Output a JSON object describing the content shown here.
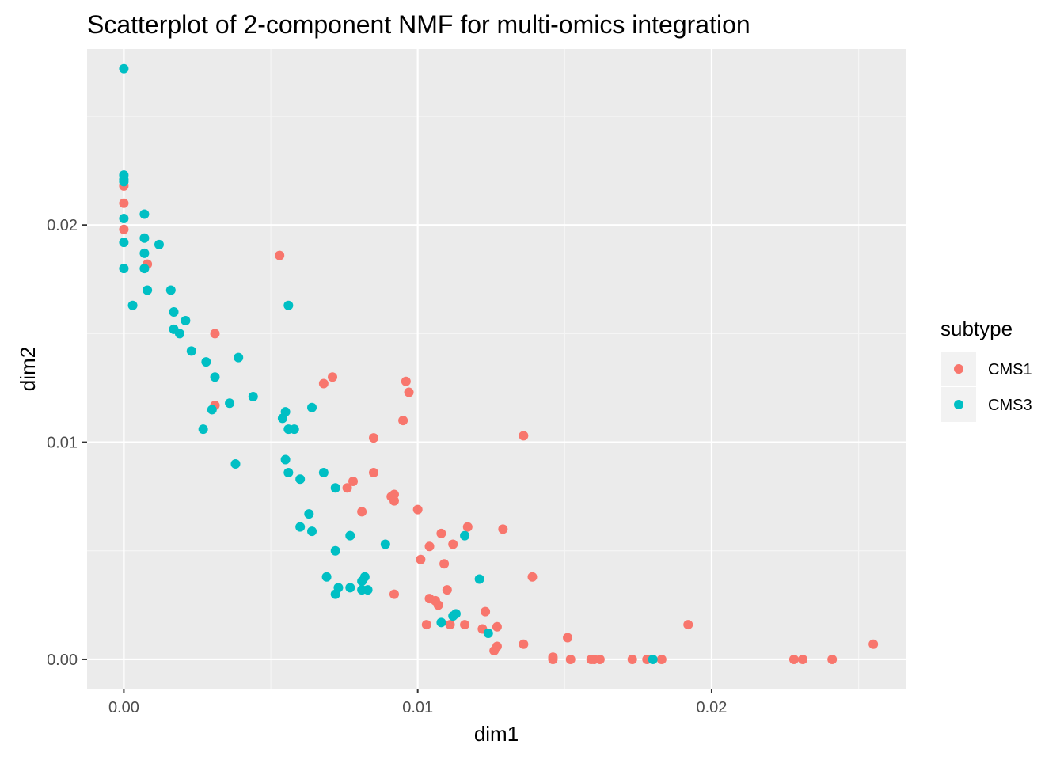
{
  "chart_data": {
    "type": "scatter",
    "title": "Scatterplot of 2-component NMF for multi-omics integration",
    "xlabel": "dim1",
    "ylabel": "dim2",
    "xlim": [
      -0.00125,
      0.0266
    ],
    "ylim": [
      -0.00135,
      0.0281
    ],
    "x_ticks": [
      0.0,
      0.01,
      0.02
    ],
    "x_tick_labels": [
      "0.00",
      "0.01",
      "0.02"
    ],
    "y_ticks": [
      0.0,
      0.01,
      0.02
    ],
    "y_tick_labels": [
      "0.00",
      "0.01",
      "0.02"
    ],
    "grid": true,
    "legend": {
      "title": "subtype",
      "position": "right"
    },
    "series": [
      {
        "name": "CMS1",
        "color": "#F8766D",
        "points": [
          [
            0.0,
            0.0218
          ],
          [
            0.0,
            0.021
          ],
          [
            0.0,
            0.0198
          ],
          [
            0.0008,
            0.0182
          ],
          [
            0.0053,
            0.0186
          ],
          [
            0.0031,
            0.015
          ],
          [
            0.0031,
            0.0117
          ],
          [
            0.0068,
            0.0127
          ],
          [
            0.0071,
            0.013
          ],
          [
            0.0096,
            0.0128
          ],
          [
            0.0097,
            0.0123
          ],
          [
            0.0095,
            0.011
          ],
          [
            0.0085,
            0.0102
          ],
          [
            0.0136,
            0.0103
          ],
          [
            0.0085,
            0.0086
          ],
          [
            0.0078,
            0.0082
          ],
          [
            0.0076,
            0.0079
          ],
          [
            0.0081,
            0.0068
          ],
          [
            0.0091,
            0.0075
          ],
          [
            0.0092,
            0.0076
          ],
          [
            0.0092,
            0.0073
          ],
          [
            0.01,
            0.0069
          ],
          [
            0.0117,
            0.0061
          ],
          [
            0.0129,
            0.006
          ],
          [
            0.0108,
            0.0058
          ],
          [
            0.0104,
            0.0052
          ],
          [
            0.0112,
            0.0053
          ],
          [
            0.0101,
            0.0046
          ],
          [
            0.0109,
            0.0044
          ],
          [
            0.0139,
            0.0038
          ],
          [
            0.011,
            0.0032
          ],
          [
            0.0092,
            0.003
          ],
          [
            0.0104,
            0.0028
          ],
          [
            0.0106,
            0.0027
          ],
          [
            0.0107,
            0.0025
          ],
          [
            0.0123,
            0.0022
          ],
          [
            0.0103,
            0.0016
          ],
          [
            0.0111,
            0.0016
          ],
          [
            0.0116,
            0.0016
          ],
          [
            0.0122,
            0.0014
          ],
          [
            0.0127,
            0.0015
          ],
          [
            0.0192,
            0.0016
          ],
          [
            0.0151,
            0.001
          ],
          [
            0.0255,
            0.0007
          ],
          [
            0.0136,
            0.0007
          ],
          [
            0.0127,
            0.0006
          ],
          [
            0.0126,
            0.0004
          ],
          [
            0.0146,
            0.0
          ],
          [
            0.0146,
            0.0001
          ],
          [
            0.0152,
            0.0
          ],
          [
            0.0159,
            0.0
          ],
          [
            0.016,
            0.0
          ],
          [
            0.0162,
            0.0
          ],
          [
            0.0173,
            0.0
          ],
          [
            0.0178,
            0.0
          ],
          [
            0.0183,
            0.0
          ],
          [
            0.0228,
            0.0
          ],
          [
            0.0231,
            0.0
          ],
          [
            0.0241,
            0.0
          ]
        ]
      },
      {
        "name": "CMS3",
        "color": "#00BFC4",
        "points": [
          [
            0.0,
            0.0272
          ],
          [
            0.0,
            0.0223
          ],
          [
            0.0,
            0.0221
          ],
          [
            0.0,
            0.022
          ],
          [
            0.0007,
            0.0205
          ],
          [
            0.0,
            0.0203
          ],
          [
            0.0007,
            0.0194
          ],
          [
            0.0012,
            0.0191
          ],
          [
            0.0,
            0.0192
          ],
          [
            0.0007,
            0.0187
          ],
          [
            0.0,
            0.018
          ],
          [
            0.0007,
            0.018
          ],
          [
            0.0008,
            0.017
          ],
          [
            0.0016,
            0.017
          ],
          [
            0.0003,
            0.0163
          ],
          [
            0.0056,
            0.0163
          ],
          [
            0.0017,
            0.016
          ],
          [
            0.0021,
            0.0156
          ],
          [
            0.0017,
            0.0152
          ],
          [
            0.0019,
            0.015
          ],
          [
            0.0023,
            0.0142
          ],
          [
            0.0028,
            0.0137
          ],
          [
            0.0039,
            0.0139
          ],
          [
            0.0031,
            0.013
          ],
          [
            0.0044,
            0.0121
          ],
          [
            0.0036,
            0.0118
          ],
          [
            0.003,
            0.0115
          ],
          [
            0.0064,
            0.0116
          ],
          [
            0.0055,
            0.0114
          ],
          [
            0.0054,
            0.0111
          ],
          [
            0.0056,
            0.0106
          ],
          [
            0.0058,
            0.0106
          ],
          [
            0.0027,
            0.0106
          ],
          [
            0.0055,
            0.0092
          ],
          [
            0.0038,
            0.009
          ],
          [
            0.0056,
            0.0086
          ],
          [
            0.006,
            0.0083
          ],
          [
            0.0068,
            0.0086
          ],
          [
            0.0072,
            0.0079
          ],
          [
            0.0063,
            0.0067
          ],
          [
            0.006,
            0.0061
          ],
          [
            0.0064,
            0.0059
          ],
          [
            0.0077,
            0.0057
          ],
          [
            0.0089,
            0.0053
          ],
          [
            0.0072,
            0.005
          ],
          [
            0.0116,
            0.0057
          ],
          [
            0.0069,
            0.0038
          ],
          [
            0.0082,
            0.0038
          ],
          [
            0.0081,
            0.0036
          ],
          [
            0.0121,
            0.0037
          ],
          [
            0.0073,
            0.0033
          ],
          [
            0.0077,
            0.0033
          ],
          [
            0.0081,
            0.0032
          ],
          [
            0.0083,
            0.0032
          ],
          [
            0.0072,
            0.003
          ],
          [
            0.0113,
            0.0021
          ],
          [
            0.0112,
            0.002
          ],
          [
            0.0108,
            0.0017
          ],
          [
            0.0124,
            0.0012
          ],
          [
            0.018,
            0.0
          ]
        ]
      }
    ]
  }
}
